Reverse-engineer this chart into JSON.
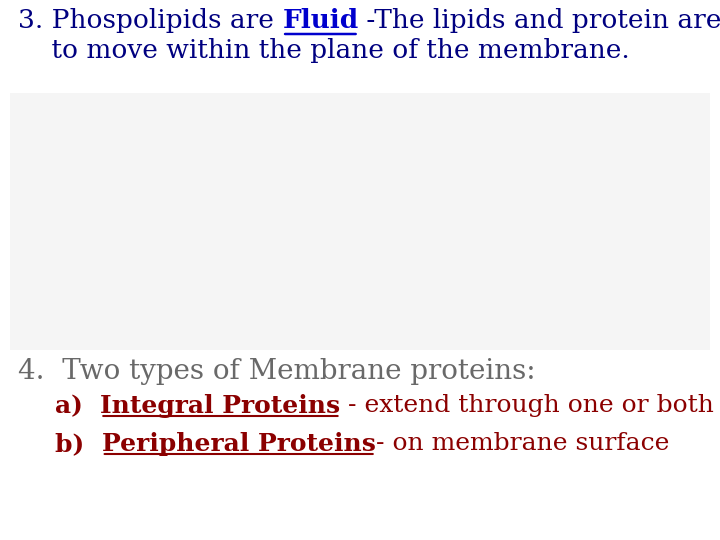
{
  "bg_color": "#ffffff",
  "heading_color": "#000080",
  "fluid_color": "#0000cd",
  "section4_color": "#696969",
  "red_color": "#8b0000",
  "line1_before": "3. Phospolipids are ",
  "line1_fluid": "Fluid",
  "line1_after": " -The lipids and protein are free",
  "line2": "    to move within the plane of the membrane.",
  "section4_text": "4.  Two types of Membrane proteins:",
  "item_a_label": "a)  ",
  "item_a_bold": "Integral Proteins",
  "item_a_rest": " - extend through one or both lipid layers.",
  "item_b_label": "b)  ",
  "item_b_bold": "Peripheral Proteins",
  "item_b_rest": "- on membrane surface",
  "font_size_heading": 19,
  "font_size_section4": 20,
  "font_size_items": 18
}
